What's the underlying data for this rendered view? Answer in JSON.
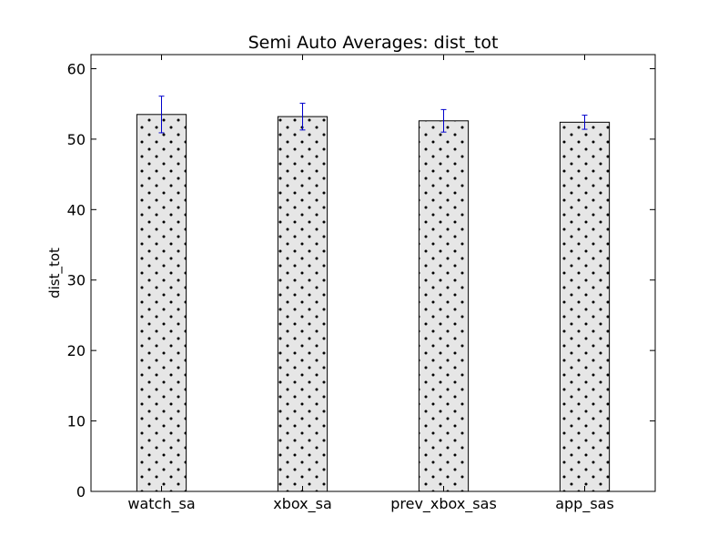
{
  "chart_data": {
    "type": "bar",
    "title": "Semi Auto Averages: dist_tot",
    "xlabel": "",
    "ylabel": "dist_tot",
    "ylim": [
      0,
      62
    ],
    "yticks": [
      0,
      10,
      20,
      30,
      40,
      50,
      60
    ],
    "categories": [
      "watch_sa",
      "xbox_sa",
      "prev_xbox_sas",
      "app_sas"
    ],
    "values": [
      53.5,
      53.2,
      52.6,
      52.4
    ],
    "errors": [
      2.6,
      1.9,
      1.6,
      1.0
    ],
    "bar_fill": "#e6e6e6",
    "bar_edge": "#000000",
    "hatch": "dots",
    "error_color": "#0000cc",
    "grid": false
  }
}
